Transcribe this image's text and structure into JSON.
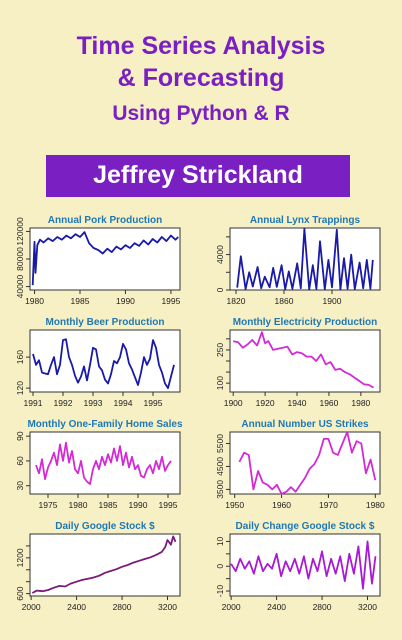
{
  "cover": {
    "title_line1": "Time Series Analysis",
    "title_line2": "& Forecasting",
    "subtitle": "Using Python & R",
    "author": "Jeffrey Strickland",
    "accent_color": "#7a1fc2",
    "background_color": "#f7f0c4"
  },
  "chart_data": [
    {
      "type": "line",
      "title": "Annual Pork Production",
      "xlabel": "",
      "ylabel": "",
      "xlim": [
        1979.5,
        1996
      ],
      "ylim": [
        35000,
        125000
      ],
      "xticks": [
        1980,
        1985,
        1990,
        1995
      ],
      "yticks": [
        40000,
        80000,
        120000
      ],
      "color": "#1a1aa8",
      "series": [
        {
          "x": [
            1979.8,
            1980,
            1980.1,
            1980.3,
            1980.6,
            1981,
            1981.5,
            1982,
            1982.5,
            1983,
            1983.5,
            1984,
            1984.5,
            1985,
            1985.5,
            1986,
            1986.5,
            1987,
            1987.5,
            1988,
            1988.5,
            1989,
            1989.5,
            1990,
            1990.5,
            1991,
            1991.5,
            1992,
            1992.5,
            1993,
            1993.5,
            1994,
            1994.5,
            1995,
            1995.5,
            1995.8
          ],
          "y": [
            42000,
            105000,
            60000,
            100000,
            108000,
            104000,
            110000,
            106000,
            112000,
            108000,
            114000,
            110000,
            116000,
            112000,
            119000,
            103000,
            96000,
            93000,
            88000,
            95000,
            90000,
            98000,
            94000,
            100000,
            96000,
            103000,
            99000,
            107000,
            101000,
            109000,
            104000,
            112000,
            106000,
            114000,
            108000,
            112000
          ]
        }
      ]
    },
    {
      "type": "line",
      "title": "Annual Lynx Trappings",
      "xlabel": "",
      "ylabel": "",
      "xlim": [
        1815,
        1940
      ],
      "ylim": [
        0,
        7000
      ],
      "xticks": [
        1820,
        1860,
        1900
      ],
      "yticks": [
        0,
        2000,
        4000,
        6000
      ],
      "tick_labels_y": [
        "0",
        "",
        "4000",
        ""
      ],
      "color": "#1a1aa8",
      "series": [
        {
          "x": [
            1821,
            1824,
            1828,
            1831,
            1834,
            1838,
            1841,
            1844,
            1848,
            1851,
            1854,
            1858,
            1861,
            1864,
            1867,
            1871,
            1874,
            1877,
            1881,
            1884,
            1887,
            1890,
            1894,
            1897,
            1900,
            1904,
            1907,
            1910,
            1913,
            1916,
            1919,
            1923,
            1926,
            1929,
            1932,
            1934
          ],
          "y": [
            269,
            3800,
            100,
            2000,
            400,
            2600,
            200,
            1500,
            300,
            2500,
            350,
            2800,
            80,
            2100,
            150,
            3000,
            200,
            6900,
            50,
            2800,
            120,
            5500,
            80,
            3400,
            300,
            6800,
            50,
            3600,
            150,
            4000,
            100,
            3100,
            200,
            3400,
            150,
            3400
          ]
        }
      ]
    },
    {
      "type": "line",
      "title": "Monthly  Beer Production",
      "xlabel": "",
      "ylabel": "",
      "xlim": [
        1990.9,
        1995.9
      ],
      "ylim": [
        115,
        195
      ],
      "xticks": [
        1991,
        1992,
        1993,
        1994,
        1995
      ],
      "yticks": [
        120,
        160
      ],
      "color": "#1a1aa8",
      "series": [
        {
          "x": [
            1991,
            1991.1,
            1991.2,
            1991.3,
            1991.5,
            1991.6,
            1991.7,
            1991.8,
            1991.9,
            1992,
            1992.1,
            1992.2,
            1992.3,
            1992.4,
            1992.5,
            1992.6,
            1992.7,
            1992.8,
            1992.9,
            1993,
            1993.1,
            1993.2,
            1993.3,
            1993.4,
            1993.5,
            1993.6,
            1993.7,
            1993.8,
            1993.9,
            1994,
            1994.1,
            1994.2,
            1994.3,
            1994.4,
            1994.5,
            1994.6,
            1994.7,
            1994.8,
            1994.9,
            1995,
            1995.1,
            1995.2,
            1995.3,
            1995.4,
            1995.5,
            1995.6,
            1995.7
          ],
          "y": [
            164,
            150,
            156,
            140,
            138,
            150,
            160,
            138,
            150,
            182,
            183,
            160,
            150,
            136,
            127,
            135,
            148,
            130,
            150,
            172,
            170,
            148,
            143,
            131,
            126,
            138,
            155,
            152,
            160,
            177,
            170,
            152,
            144,
            134,
            124,
            140,
            160,
            150,
            158,
            182,
            172,
            150,
            140,
            126,
            120,
            135,
            150
          ]
        }
      ]
    },
    {
      "type": "line",
      "title": "Monthly Electricity Production",
      "xlabel": "",
      "ylabel": "",
      "xlim": [
        1898,
        1992
      ],
      "ylim": [
        60,
        340
      ],
      "xticks": [
        1900,
        1920,
        1940,
        1960,
        1980
      ],
      "yticks": [
        100,
        150,
        200,
        250,
        300
      ],
      "tick_labels_y": [
        "100",
        "",
        "",
        "250",
        ""
      ],
      "color": "#d42ad4",
      "series": [
        {
          "x": [
            1900,
            1903,
            1906,
            1909,
            1912,
            1915,
            1918,
            1920,
            1922,
            1925,
            1928,
            1931,
            1934,
            1937,
            1940,
            1943,
            1946,
            1949,
            1952,
            1955,
            1958,
            1961,
            1964,
            1967,
            1970,
            1973,
            1976,
            1979,
            1982,
            1985,
            1988
          ],
          "y": [
            290,
            285,
            260,
            275,
            295,
            270,
            330,
            280,
            290,
            250,
            255,
            260,
            265,
            230,
            240,
            235,
            220,
            220,
            200,
            230,
            185,
            195,
            160,
            165,
            150,
            140,
            125,
            110,
            95,
            92,
            80
          ]
        }
      ]
    },
    {
      "type": "line",
      "title": "Monthly One-Family Home Sales",
      "xlabel": "",
      "ylabel": "",
      "xlim": [
        1972,
        1997
      ],
      "ylim": [
        20,
        95
      ],
      "xticks": [
        1975,
        1980,
        1985,
        1990,
        1995
      ],
      "yticks": [
        30,
        60,
        90
      ],
      "color": "#d42ad4",
      "series": [
        {
          "x": [
            1973,
            1973.5,
            1974,
            1974.5,
            1975,
            1975.5,
            1976,
            1976.5,
            1977,
            1977.5,
            1978,
            1978.5,
            1979,
            1979.5,
            1980,
            1980.5,
            1981,
            1981.5,
            1982,
            1982.5,
            1983,
            1983.5,
            1984,
            1984.5,
            1985,
            1985.5,
            1986,
            1986.5,
            1987,
            1987.5,
            1988,
            1988.5,
            1989,
            1989.5,
            1990,
            1990.5,
            1991,
            1991.5,
            1992,
            1992.5,
            1993,
            1993.5,
            1994,
            1994.5,
            1995,
            1995.5
          ],
          "y": [
            55,
            45,
            62,
            38,
            52,
            60,
            70,
            55,
            80,
            60,
            82,
            58,
            72,
            50,
            45,
            60,
            40,
            35,
            32,
            50,
            60,
            50,
            65,
            55,
            68,
            58,
            75,
            60,
            78,
            55,
            70,
            52,
            65,
            50,
            55,
            42,
            40,
            50,
            55,
            45,
            60,
            50,
            65,
            48,
            55,
            60
          ]
        }
      ]
    },
    {
      "type": "line",
      "title": "Annual Number US Strikes",
      "xlabel": "",
      "ylabel": "",
      "xlim": [
        1949,
        1981
      ],
      "ylim": [
        3300,
        6000
      ],
      "xticks": [
        1950,
        1960,
        1970,
        1980
      ],
      "yticks": [
        3500,
        4500,
        5500
      ],
      "color": "#d42ad4",
      "series": [
        {
          "x": [
            1951,
            1952,
            1953,
            1954,
            1955,
            1956,
            1957,
            1958,
            1959,
            1960,
            1961,
            1962,
            1963,
            1964,
            1965,
            1966,
            1967,
            1968,
            1969,
            1970,
            1971,
            1972,
            1973,
            1974,
            1975,
            1976,
            1977,
            1978,
            1979,
            1980
          ],
          "y": [
            4700,
            5100,
            5000,
            3500,
            4300,
            3800,
            3700,
            3500,
            3700,
            3300,
            3400,
            3600,
            3400,
            3700,
            4000,
            4400,
            4600,
            5000,
            5700,
            5700,
            5100,
            5000,
            5500,
            6000,
            5100,
            5600,
            5500,
            4200,
            4800,
            3900
          ]
        }
      ]
    },
    {
      "type": "line",
      "title": "Daily Google Stock $",
      "xlabel": "",
      "ylabel": "",
      "xlim": [
        1990,
        3310
      ],
      "ylim": [
        560,
        1600
      ],
      "xticks": [
        2000,
        2400,
        2800,
        3200
      ],
      "yticks": [
        600,
        800,
        1000,
        1200,
        1400
      ],
      "tick_labels_y": [
        "600",
        "",
        "",
        "1200",
        ""
      ],
      "color": "#7a1a7a",
      "series": [
        {
          "x": [
            2010,
            2050,
            2100,
            2150,
            2200,
            2250,
            2300,
            2350,
            2400,
            2450,
            2500,
            2550,
            2600,
            2650,
            2700,
            2750,
            2800,
            2850,
            2900,
            2950,
            3000,
            3050,
            3100,
            3150,
            3180,
            3200,
            3230,
            3250,
            3270
          ],
          "y": [
            610,
            650,
            640,
            660,
            700,
            730,
            720,
            770,
            800,
            830,
            850,
            870,
            900,
            950,
            980,
            1010,
            1050,
            1080,
            1120,
            1150,
            1180,
            1210,
            1250,
            1300,
            1380,
            1500,
            1420,
            1560,
            1470
          ]
        }
      ]
    },
    {
      "type": "line",
      "title": "Daily Change Google Stock $",
      "xlabel": "",
      "ylabel": "",
      "xlim": [
        1990,
        3310
      ],
      "ylim": [
        -12,
        13
      ],
      "xticks": [
        2000,
        2400,
        2800,
        3200
      ],
      "yticks": [
        -10,
        -5,
        0,
        5,
        10
      ],
      "tick_labels_y": [
        "-10",
        "",
        "0",
        "",
        "10"
      ],
      "color": "#a81ad4",
      "series": [
        {
          "x": [
            2000,
            2040,
            2080,
            2120,
            2160,
            2200,
            2240,
            2280,
            2320,
            2360,
            2400,
            2440,
            2480,
            2520,
            2560,
            2600,
            2640,
            2680,
            2720,
            2760,
            2800,
            2840,
            2880,
            2920,
            2960,
            3000,
            3040,
            3080,
            3120,
            3160,
            3200,
            3240,
            3270
          ],
          "y": [
            1,
            -2,
            3,
            -1,
            2,
            -3,
            4,
            -2,
            1,
            -1,
            5,
            -4,
            2,
            -2,
            3,
            -3,
            4,
            -5,
            3,
            -2,
            6,
            -4,
            3,
            -3,
            4,
            -6,
            5,
            -3,
            8,
            -9,
            10,
            -7,
            4
          ]
        }
      ]
    }
  ]
}
